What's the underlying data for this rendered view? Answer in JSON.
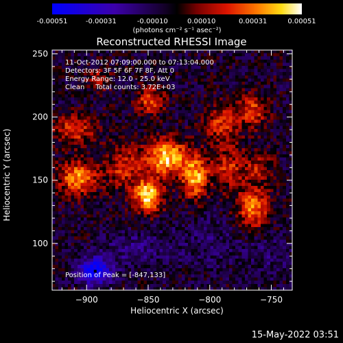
{
  "colorbar": {
    "tick_labels": [
      "-0.00051",
      "-0.00031",
      "-0.00010",
      "0.00010",
      "0.00031",
      "0.00051"
    ],
    "tick_values": [
      -0.00051,
      -0.00031,
      -0.0001,
      0.0001,
      0.00031,
      0.00051
    ],
    "unit_label": "(photons cm⁻² s⁻¹ asec⁻²)",
    "range": [
      -0.00051,
      0.00051
    ]
  },
  "chart_data": {
    "type": "heatmap",
    "title": "Reconstructed RHESSI Image",
    "xlabel": "Heliocentric X (arcsec)",
    "ylabel": "Heliocentric Y (arcsec)",
    "xlim": [
      -928,
      -733
    ],
    "ylim": [
      63,
      253
    ],
    "xticks": [
      -900,
      -850,
      -800,
      -750
    ],
    "yticks": [
      100,
      150,
      200,
      250
    ],
    "peak_position": [
      -847,
      133
    ],
    "sources": [
      {
        "x": -835,
        "y": 168,
        "sx": 12,
        "sy": 10,
        "amp": 0.00049
      },
      {
        "x": -850,
        "y": 138,
        "sx": 8,
        "sy": 9,
        "amp": 0.00051
      },
      {
        "x": -812,
        "y": 152,
        "sx": 7,
        "sy": 11,
        "amp": 0.00045
      },
      {
        "x": -907,
        "y": 152,
        "sx": 11,
        "sy": 9,
        "amp": 0.0004
      },
      {
        "x": -765,
        "y": 128,
        "sx": 9,
        "sy": 11,
        "amp": 0.00038
      },
      {
        "x": -910,
        "y": 190,
        "sx": 12,
        "sy": 8,
        "amp": 0.00028
      },
      {
        "x": -790,
        "y": 195,
        "sx": 10,
        "sy": 10,
        "amp": 0.00026
      },
      {
        "x": -848,
        "y": 213,
        "sx": 8,
        "sy": 7,
        "amp": 0.0003
      },
      {
        "x": -765,
        "y": 205,
        "sx": 8,
        "sy": 9,
        "amp": 0.00028
      },
      {
        "x": -870,
        "y": 160,
        "sx": 10,
        "sy": 12,
        "amp": 0.00025
      },
      {
        "x": -785,
        "y": 160,
        "sx": 10,
        "sy": 12,
        "amp": 0.00024
      },
      {
        "x": -890,
        "y": 230,
        "sx": 7,
        "sy": 6,
        "amp": 0.00018
      },
      {
        "x": -760,
        "y": 160,
        "sx": 8,
        "sy": 8,
        "amp": 0.0002
      },
      {
        "x": -893,
        "y": 78,
        "sx": 9,
        "sy": 7,
        "amp": -0.0005
      },
      {
        "x": -860,
        "y": 95,
        "sx": 18,
        "sy": 10,
        "amp": -0.00012
      },
      {
        "x": -800,
        "y": 100,
        "sx": 22,
        "sy": 14,
        "amp": -8e-05
      },
      {
        "x": -750,
        "y": 90,
        "sx": 12,
        "sy": 12,
        "amp": -8e-05
      }
    ],
    "background_level": -5e-05
  },
  "annotations": {
    "time_range": "11-Oct-2012 07:09:00.000 to 07:13:04.000",
    "detectors": "Detectors: 3F 5F 6F 7F 8F, Att 0",
    "energy": "Energy Range: 12.0 - 25.0 keV",
    "clean": "Clean     Total counts: 3.72E+03",
    "peak": "Position of Peak = [-847,133]"
  },
  "footer": {
    "date": "15-May-2022 03:51"
  }
}
